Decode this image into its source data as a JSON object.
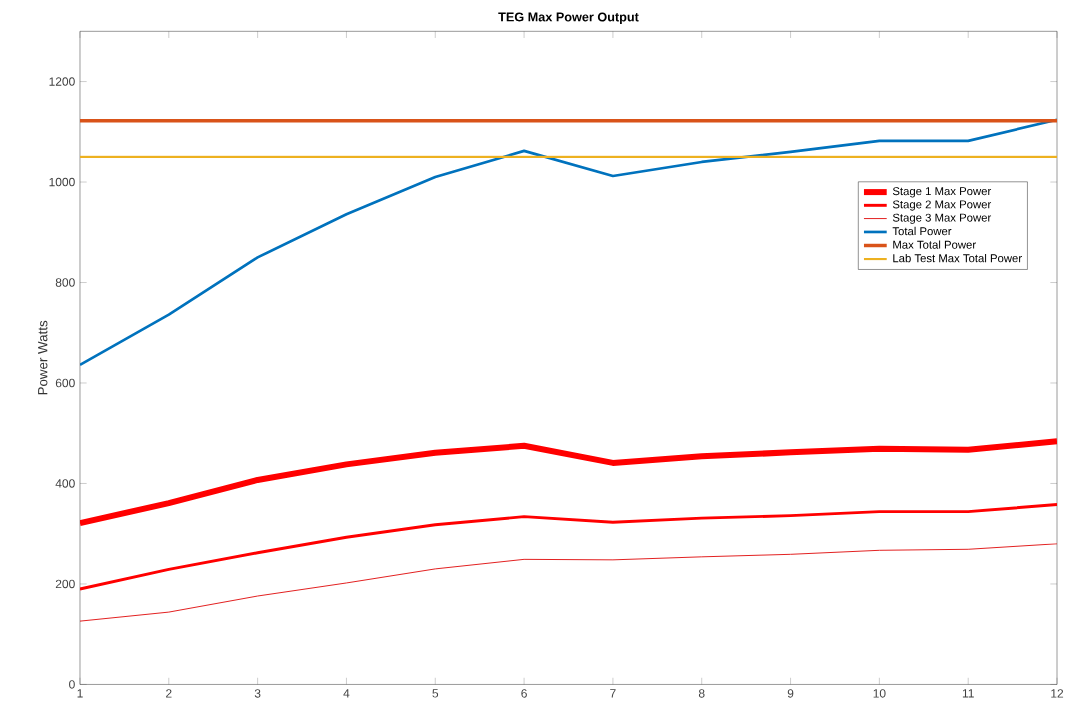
{
  "chart_data": {
    "type": "line",
    "title": "**TEG Max Power Output**",
    "ylabel": "Power Watts",
    "x": [
      1,
      2,
      3,
      4,
      5,
      6,
      7,
      8,
      9,
      10,
      11,
      12
    ],
    "xlim": [
      1,
      12
    ],
    "xticks": [
      1,
      2,
      3,
      4,
      5,
      6,
      7,
      8,
      9,
      10,
      11,
      12
    ],
    "ylim": [
      0,
      1300
    ],
    "yticks": [
      0,
      200,
      400,
      600,
      800,
      1000,
      1200
    ],
    "grid": false,
    "legend": "right",
    "marker": "none",
    "line_style": "solid",
    "series": [
      {
        "name": "Stage 1 Max Power",
        "color": "#ff0000",
        "values": [
          321,
          361,
          407,
          438,
          461,
          475,
          441,
          454,
          462,
          469,
          467,
          484
        ]
      },
      {
        "name": "Stage 2 Max Power",
        "color": "#ff0000",
        "values": [
          190,
          229,
          262,
          293,
          318,
          334,
          323,
          331,
          336,
          344,
          344,
          358
        ]
      },
      {
        "name": "Stage 3 Max Power",
        "color": "#e01010",
        "values": [
          126,
          144,
          176,
          202,
          230,
          249,
          248,
          254,
          259,
          267,
          269,
          280
        ]
      },
      {
        "name": "Total Power",
        "color": "#0072bd",
        "values": [
          636,
          736,
          850,
          936,
          1010,
          1062,
          1012,
          1040,
          1060,
          1082,
          1082,
          1124
        ]
      },
      {
        "name": "Max Total Power",
        "color": "#d95319",
        "values": [
          1122,
          1122,
          1122,
          1122,
          1122,
          1122,
          1122,
          1122,
          1122,
          1122,
          1122,
          1122
        ]
      },
      {
        "name": "Lab Test Max Total Power",
        "color": "#edb120",
        "values": [
          1050,
          1050,
          1050,
          1050,
          1050,
          1050,
          1050,
          1050,
          1050,
          1050,
          1050,
          1050
        ]
      }
    ]
  }
}
